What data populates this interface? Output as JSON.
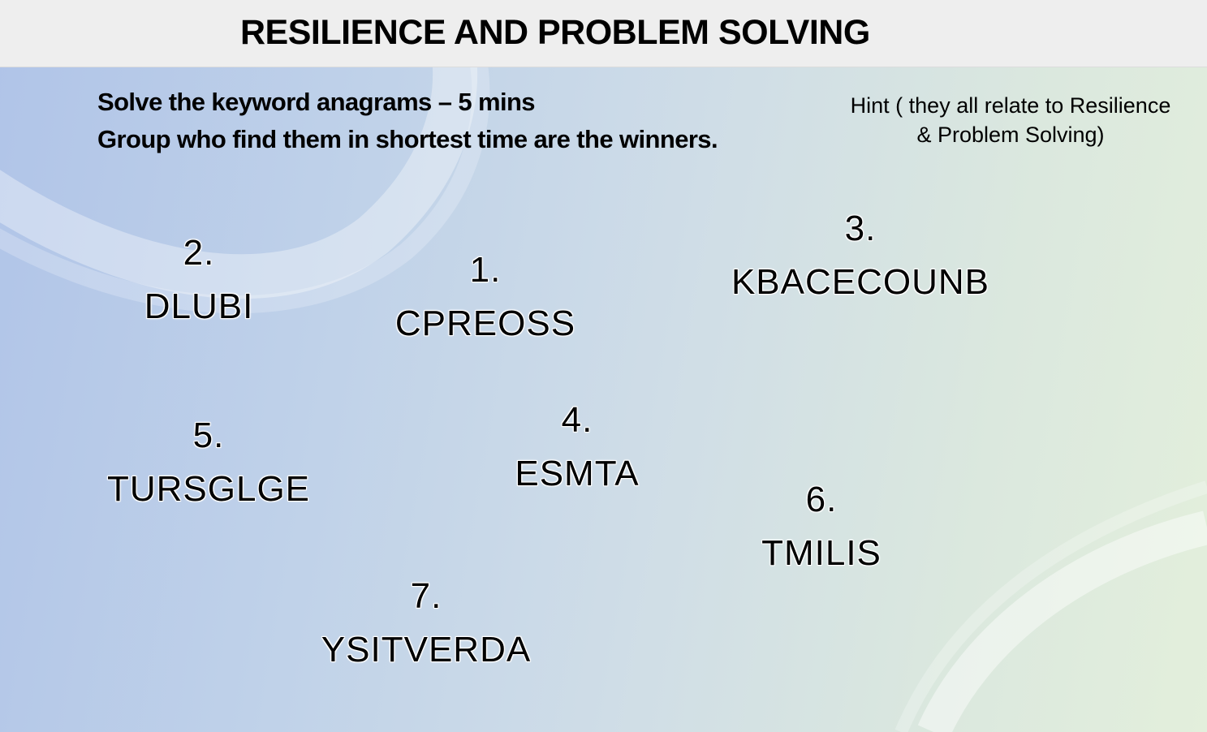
{
  "slide": {
    "title": "RESILIENCE AND PROBLEM SOLVING",
    "instructions": {
      "line1": "Solve the keyword anagrams – 5 mins",
      "line2": "Group who find them in shortest time are the winners."
    },
    "hint": {
      "line1": "Hint ( they all relate to Resilience",
      "line2": "& Problem Solving)"
    },
    "anagrams": [
      {
        "number": "1.",
        "word": "CPREOSS"
      },
      {
        "number": "2.",
        "word": "DLUBI"
      },
      {
        "number": "3.",
        "word": "KBACECOUNB"
      },
      {
        "number": "4.",
        "word": "ESMTA"
      },
      {
        "number": "5.",
        "word": "TURSGLGE"
      },
      {
        "number": "6.",
        "word": "TMILIS"
      },
      {
        "number": "7.",
        "word": "YSITVERDA"
      }
    ]
  },
  "colors": {
    "background_left": "#b0c4e8",
    "background_right": "#e3efdc",
    "title_bar": "#eeeeee",
    "text": "#000000"
  }
}
